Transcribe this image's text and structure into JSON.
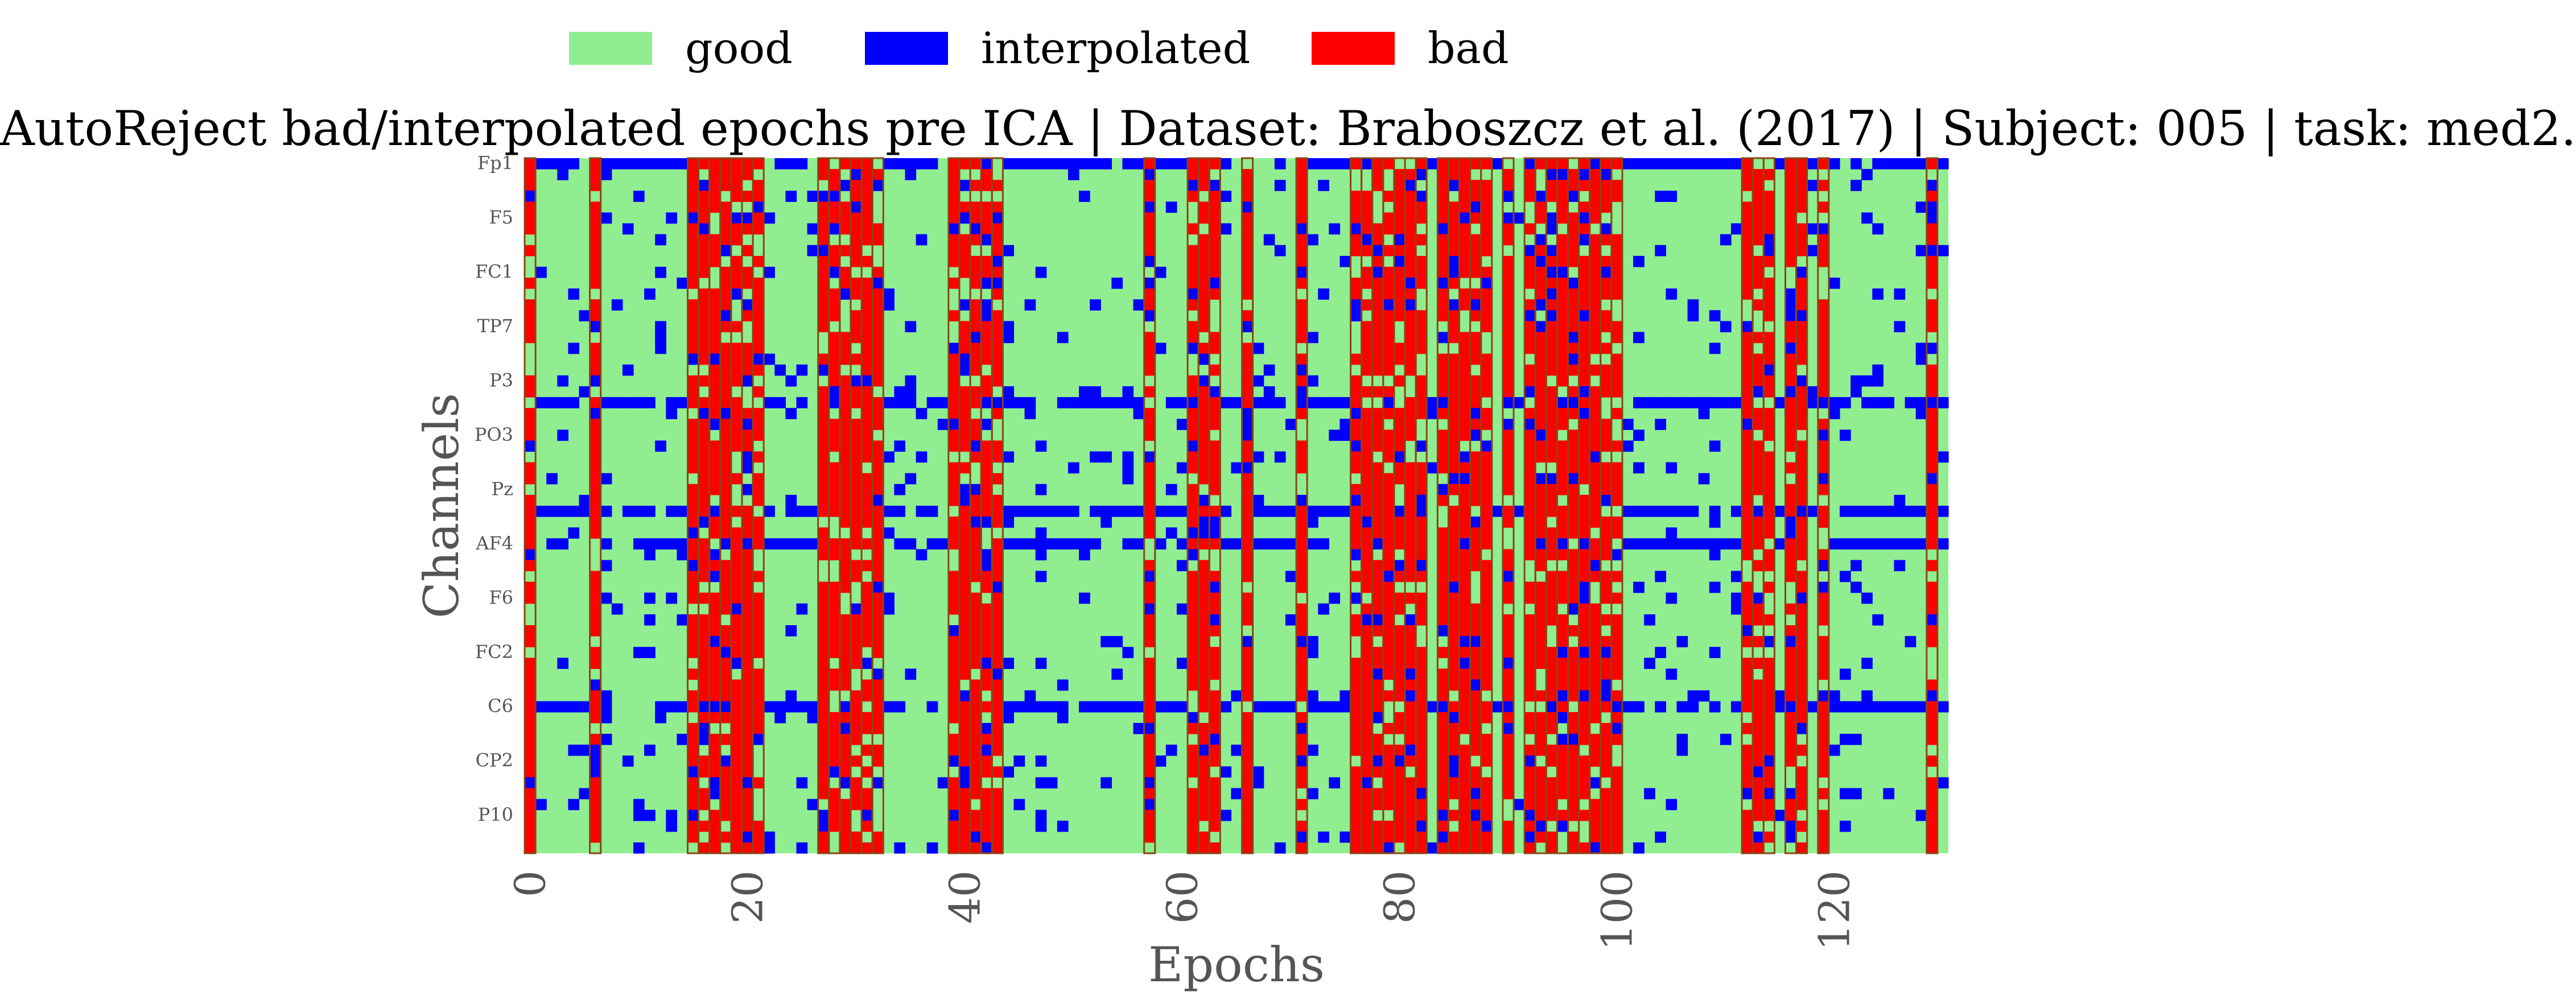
{
  "legend": {
    "items": [
      {
        "label": "good",
        "color": "#90EE90"
      },
      {
        "label": "interpolated",
        "color": "#0000FF"
      },
      {
        "label": "bad",
        "color": "#FF0000"
      }
    ]
  },
  "chart_data": {
    "type": "heatmap",
    "title": "AutoReject bad/interpolated epochs pre ICA | Dataset: Braboszcz et al. (2017) | Subject: 005 | task: med2.",
    "xlabel": "Epochs",
    "ylabel": "Channels",
    "x_range": [
      0,
      131
    ],
    "x_ticks": [
      "0",
      "20",
      "40",
      "60",
      "80",
      "100",
      "120"
    ],
    "y_tick_labels": [
      "Fp1",
      "F5",
      "FC1",
      "TP7",
      "P3",
      "PO3",
      "Pz",
      "AF4",
      "F6",
      "FC2",
      "C6",
      "CP2",
      "P10"
    ],
    "n_epochs": 131,
    "n_channels": 64,
    "status_colors": {
      "good": "#90EE90",
      "interpolated": "#0000FF",
      "bad": "#FF0000",
      "bad_epoch_outline": "#8B4513"
    },
    "bad_epochs": [
      0,
      6,
      15,
      16,
      17,
      18,
      19,
      20,
      21,
      27,
      28,
      29,
      30,
      31,
      32,
      39,
      40,
      41,
      42,
      43,
      57,
      61,
      62,
      63,
      66,
      71,
      76,
      77,
      78,
      79,
      80,
      81,
      82,
      84,
      85,
      86,
      87,
      88,
      90,
      92,
      93,
      94,
      95,
      96,
      97,
      98,
      99,
      100,
      112,
      113,
      114,
      116,
      117,
      119,
      129
    ],
    "interpolated_rows_mostly": [
      0,
      22,
      32,
      35,
      50
    ]
  }
}
